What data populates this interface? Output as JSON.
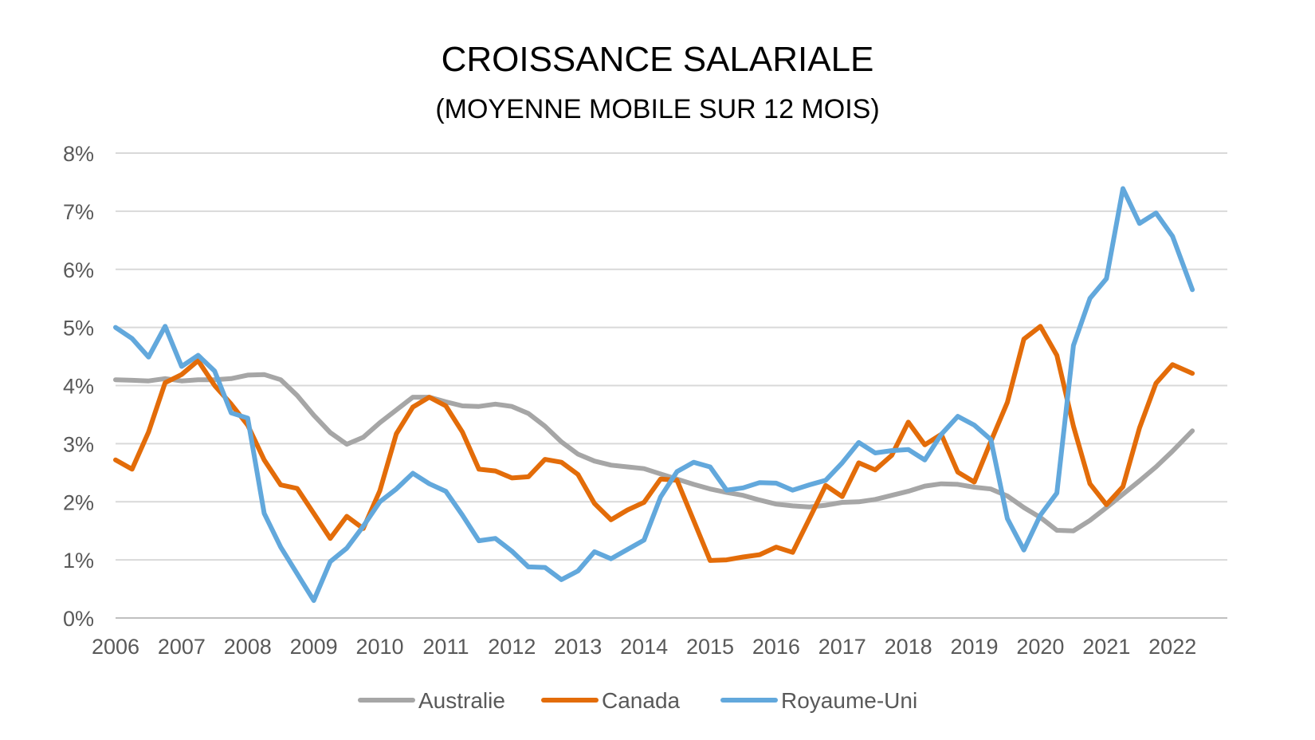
{
  "chart_data": {
    "type": "line",
    "title": "CROISSANCE SALARIALE",
    "subtitle": "(MOYENNE MOBILE SUR 12 MOIS)",
    "xlabel": "",
    "ylabel": "",
    "x_tick_labels": [
      "2006",
      "2007",
      "2008",
      "2009",
      "2010",
      "2011",
      "2012",
      "2013",
      "2014",
      "2015",
      "2016",
      "2017",
      "2018",
      "2019",
      "2020",
      "2021",
      "2022"
    ],
    "y_tick_labels": [
      "0%",
      "1%",
      "2%",
      "3%",
      "4%",
      "5%",
      "6%",
      "7%",
      "8%"
    ],
    "ylim": [
      0,
      8
    ],
    "xlim": [
      2006,
      2022.83
    ],
    "grid": true,
    "legend_position": "bottom",
    "series": [
      {
        "name": "Australie",
        "color": "#A6A6A6",
        "x": [
          2006,
          2006.25,
          2006.5,
          2006.75,
          2007,
          2007.25,
          2007.5,
          2007.75,
          2008,
          2008.25,
          2008.5,
          2008.75,
          2009,
          2009.25,
          2009.5,
          2009.75,
          2010,
          2010.25,
          2010.5,
          2010.75,
          2011,
          2011.25,
          2011.5,
          2011.75,
          2012,
          2012.25,
          2012.5,
          2012.75,
          2013,
          2013.25,
          2013.5,
          2013.75,
          2014,
          2014.25,
          2014.5,
          2014.75,
          2015,
          2015.25,
          2015.5,
          2015.75,
          2016,
          2016.25,
          2016.5,
          2016.75,
          2017,
          2017.25,
          2017.5,
          2017.75,
          2018,
          2018.25,
          2018.5,
          2018.75,
          2019,
          2019.25,
          2019.5,
          2019.75,
          2020,
          2020.25,
          2020.5,
          2020.75,
          2021,
          2021.25,
          2021.5,
          2021.75,
          2022,
          2022.3
        ],
        "values": [
          4.1,
          4.09,
          4.08,
          4.12,
          4.08,
          4.1,
          4.1,
          4.12,
          4.18,
          4.19,
          4.1,
          3.83,
          3.49,
          3.19,
          2.99,
          3.11,
          3.36,
          3.58,
          3.8,
          3.8,
          3.72,
          3.65,
          3.64,
          3.68,
          3.64,
          3.52,
          3.3,
          3.03,
          2.82,
          2.7,
          2.63,
          2.6,
          2.57,
          2.48,
          2.39,
          2.3,
          2.22,
          2.16,
          2.11,
          2.03,
          1.96,
          1.93,
          1.91,
          1.94,
          1.99,
          2.0,
          2.04,
          2.11,
          2.18,
          2.27,
          2.31,
          2.3,
          2.25,
          2.22,
          2.1,
          1.9,
          1.73,
          1.51,
          1.5,
          1.68,
          1.9,
          2.13,
          2.36,
          2.6,
          2.87,
          3.22
        ]
      },
      {
        "name": "Canada",
        "color": "#E36C09",
        "x": [
          2006,
          2006.25,
          2006.5,
          2006.75,
          2007,
          2007.25,
          2007.5,
          2007.75,
          2008,
          2008.25,
          2008.5,
          2008.75,
          2009,
          2009.25,
          2009.5,
          2009.75,
          2010,
          2010.25,
          2010.5,
          2010.75,
          2011,
          2011.25,
          2011.5,
          2011.75,
          2012,
          2012.25,
          2012.5,
          2012.75,
          2013,
          2013.25,
          2013.5,
          2013.75,
          2014,
          2014.25,
          2014.5,
          2014.75,
          2015,
          2015.25,
          2015.5,
          2015.75,
          2016,
          2016.25,
          2016.5,
          2016.75,
          2017,
          2017.25,
          2017.5,
          2017.75,
          2018,
          2018.25,
          2018.5,
          2018.75,
          2019,
          2019.25,
          2019.5,
          2019.75,
          2020,
          2020.25,
          2020.5,
          2020.75,
          2021,
          2021.25,
          2021.5,
          2021.75,
          2022,
          2022.3
        ],
        "values": [
          2.72,
          2.56,
          3.2,
          4.05,
          4.19,
          4.43,
          4.0,
          3.68,
          3.32,
          2.72,
          2.29,
          2.23,
          1.8,
          1.37,
          1.75,
          1.54,
          2.19,
          3.17,
          3.63,
          3.8,
          3.65,
          3.2,
          2.56,
          2.53,
          2.41,
          2.43,
          2.73,
          2.68,
          2.47,
          1.97,
          1.69,
          1.86,
          1.99,
          2.39,
          2.37,
          1.68,
          0.99,
          1.0,
          1.05,
          1.09,
          1.22,
          1.13,
          1.7,
          2.28,
          2.09,
          2.67,
          2.55,
          2.8,
          3.37,
          2.98,
          3.16,
          2.51,
          2.34,
          3.04,
          3.71,
          4.8,
          5.02,
          4.52,
          3.3,
          2.31,
          1.95,
          2.26,
          3.27,
          4.04,
          4.36,
          4.21
        ]
      },
      {
        "name": "Royaume-Uni",
        "color": "#62A8DC",
        "x": [
          2006,
          2006.25,
          2006.5,
          2006.75,
          2007,
          2007.25,
          2007.5,
          2007.75,
          2008,
          2008.25,
          2008.5,
          2008.75,
          2009,
          2009.25,
          2009.5,
          2009.75,
          2010,
          2010.25,
          2010.5,
          2010.75,
          2011,
          2011.25,
          2011.5,
          2011.75,
          2012,
          2012.25,
          2012.5,
          2012.75,
          2013,
          2013.25,
          2013.5,
          2013.75,
          2014,
          2014.25,
          2014.5,
          2014.75,
          2015,
          2015.25,
          2015.5,
          2015.75,
          2016,
          2016.25,
          2016.5,
          2016.75,
          2017,
          2017.25,
          2017.5,
          2017.75,
          2018,
          2018.25,
          2018.5,
          2018.75,
          2019,
          2019.25,
          2019.5,
          2019.75,
          2020,
          2020.25,
          2020.5,
          2020.75,
          2021,
          2021.25,
          2021.5,
          2021.75,
          2022,
          2022.3
        ],
        "values": [
          5.0,
          4.81,
          4.49,
          5.02,
          4.33,
          4.52,
          4.25,
          3.53,
          3.44,
          1.8,
          1.22,
          0.76,
          0.3,
          0.97,
          1.2,
          1.58,
          2.0,
          2.22,
          2.49,
          2.31,
          2.18,
          1.77,
          1.33,
          1.37,
          1.15,
          0.88,
          0.87,
          0.66,
          0.81,
          1.14,
          1.02,
          1.18,
          1.34,
          2.08,
          2.52,
          2.68,
          2.6,
          2.2,
          2.24,
          2.33,
          2.32,
          2.2,
          2.29,
          2.37,
          2.67,
          3.02,
          2.84,
          2.88,
          2.9,
          2.72,
          3.16,
          3.47,
          3.32,
          3.07,
          1.71,
          1.17,
          1.77,
          2.15,
          4.69,
          5.5,
          5.84,
          7.39,
          6.79,
          6.97,
          6.57,
          5.65
        ]
      }
    ]
  }
}
